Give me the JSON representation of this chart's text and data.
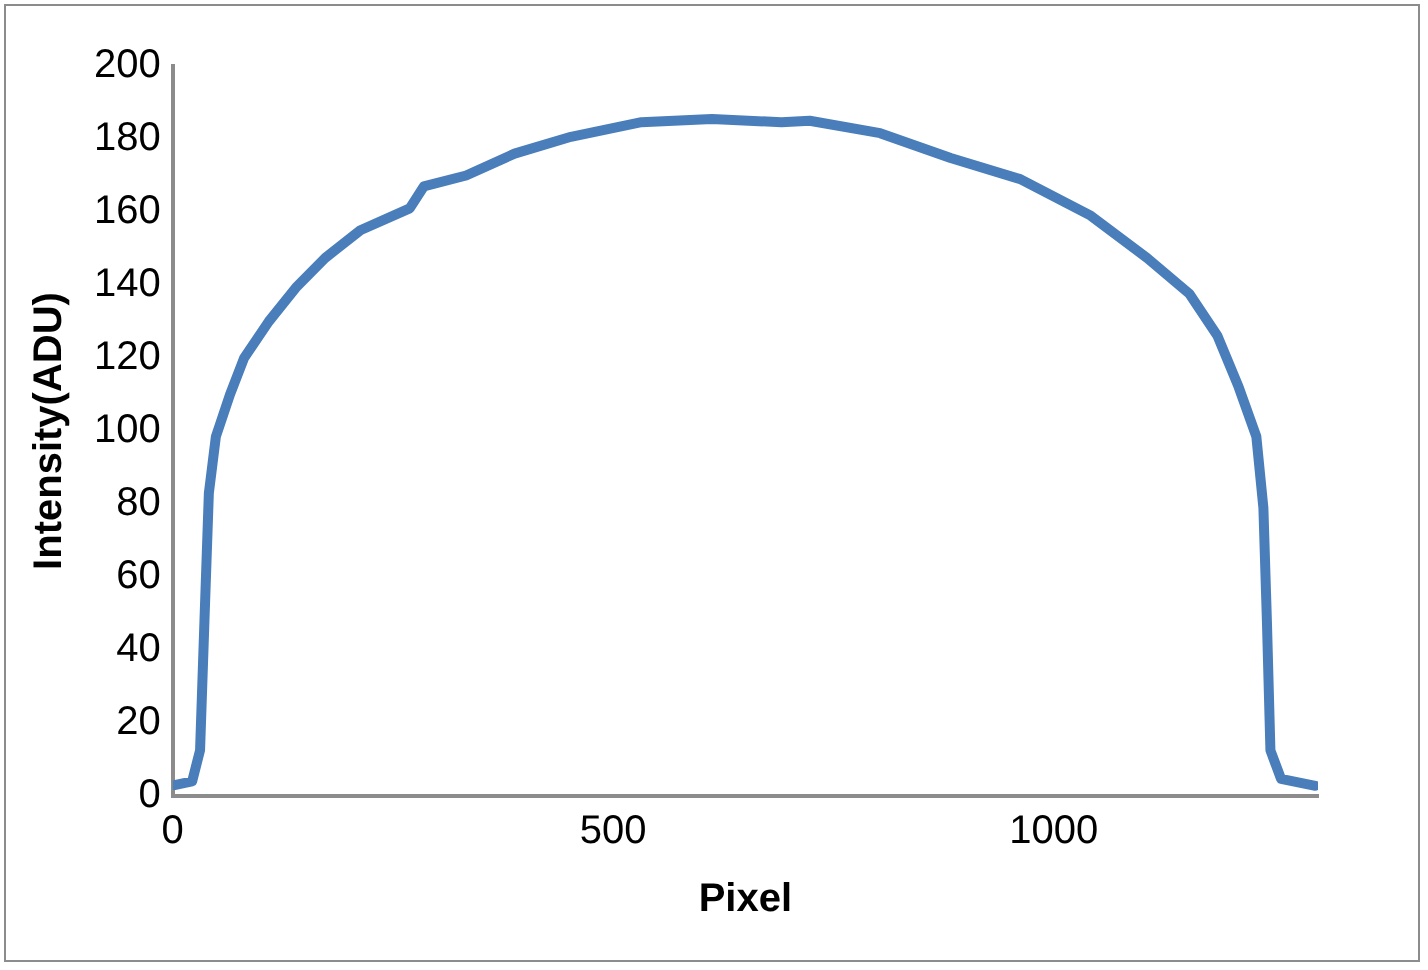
{
  "chart_data": {
    "type": "line",
    "xlabel": "Pixel",
    "ylabel": "Intensity(ADU)",
    "xlim": [
      0,
      1300
    ],
    "xticks": [
      0,
      500,
      1000
    ],
    "ylim": [
      0,
      200
    ],
    "yticks": [
      0,
      20,
      40,
      60,
      80,
      100,
      120,
      140,
      160,
      180,
      200
    ],
    "grid": false,
    "legend": false,
    "marker": "none",
    "line_style": "solid",
    "series": [
      {
        "color": "#4a7ebb",
        "x": [
          2,
          22,
          31,
          36,
          41,
          49,
          65,
          81,
          109,
          141,
          173,
          213,
          269,
          285,
          333,
          388,
          452,
          532,
          612,
          691,
          723,
          803,
          883,
          962,
          1042,
          1106,
          1154,
          1186,
          1210,
          1230,
          1238,
          1242,
          1246,
          1258,
          1297
        ],
        "values": [
          3,
          4,
          12.5,
          48,
          83,
          98.5,
          110,
          120,
          130,
          139.6,
          147.4,
          155,
          161,
          167,
          170,
          176,
          180.6,
          184.6,
          185.5,
          184.6,
          185,
          181.6,
          174.8,
          169,
          159,
          147.4,
          137.6,
          126,
          112,
          98.5,
          79,
          48,
          12.5,
          4.7,
          2.8
        ]
      }
    ]
  }
}
